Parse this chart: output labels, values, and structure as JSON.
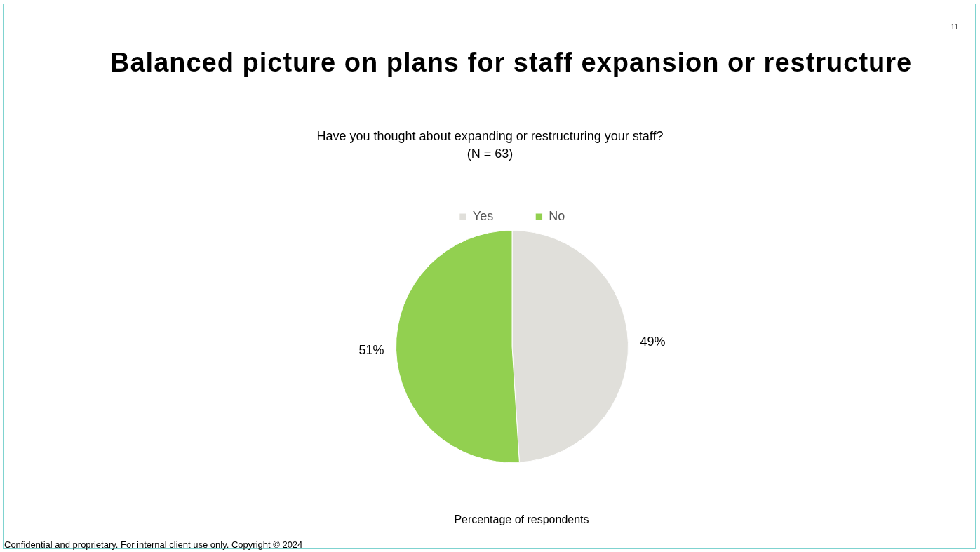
{
  "chart_data": {
    "type": "pie",
    "title": "Have you thought about expanding or restructuring your staff?",
    "subtitle": "(N = 63)",
    "categories": [
      "Yes",
      "No"
    ],
    "values": [
      49,
      51
    ],
    "colors": [
      "#e0dfda",
      "#92d050"
    ],
    "value_labels": [
      "49%",
      "51%"
    ],
    "legend": "top",
    "annotations": [
      "Balanced picture on plans for staff expansion or restructure",
      "Percentage of respondents",
      "11",
      "Confidential and proprietary. For internal client use only. Copyright © 2024"
    ]
  }
}
